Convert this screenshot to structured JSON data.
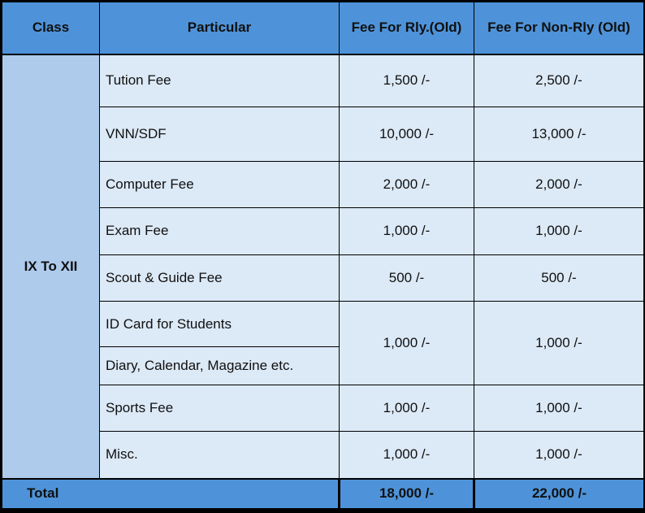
{
  "table": {
    "headers": [
      "Class",
      "Particular",
      "Fee For Rly.(Old)",
      "Fee For Non-Rly (Old)"
    ],
    "class_label": "IX To XII",
    "rows": [
      {
        "particular": "Tution Fee",
        "rly": "1,500 /-",
        "non_rly": "2,500 /-"
      },
      {
        "particular": "VNN/SDF",
        "rly": "10,000 /-",
        "non_rly": "13,000 /-"
      },
      {
        "particular": "Computer Fee",
        "rly": "2,000 /-",
        "non_rly": "2,000 /-"
      },
      {
        "particular": "Exam Fee",
        "rly": "1,000 /-",
        "non_rly": "1,000 /-"
      },
      {
        "particular": "Scout & Guide Fee",
        "rly": "500 /-",
        "non_rly": "500 /-"
      },
      {
        "particular": "ID Card for Students",
        "rly": "1,000 /-",
        "non_rly": "1,000 /-",
        "note": "fee cells merged with next row"
      },
      {
        "particular": "Diary, Calendar, Magazine etc."
      },
      {
        "particular": "Sports Fee",
        "rly": "1,000 /-",
        "non_rly": "1,000 /-"
      },
      {
        "particular": "Misc.",
        "rly": "1,000 /-",
        "non_rly": "1,000 /-"
      }
    ],
    "total": {
      "label": "Total",
      "rly": "18,000 /-",
      "non_rly": "22,000 /-"
    }
  },
  "colors": {
    "header_bg": "#4E93D9",
    "class_bg": "#AECBEC",
    "body_bg": "#DCE9F6",
    "total_bg": "#4E93D9",
    "border_color": "#000000",
    "text_color": "#101010"
  }
}
